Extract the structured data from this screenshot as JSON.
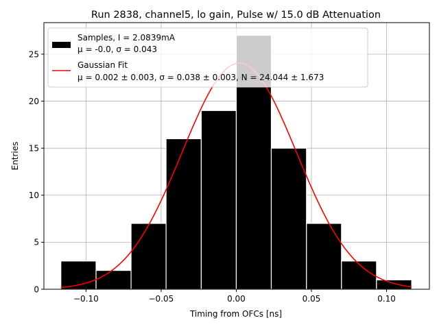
{
  "chart_data": {
    "type": "bar",
    "title": "Run 2838, channel5, lo gain, Pulse w/ 15.0 dB Attenuation",
    "xlabel": "Timing from OFCs [ns]",
    "ylabel": "Entries",
    "xlim": [
      -0.128,
      0.1285
    ],
    "ylim": [
      0,
      28.35
    ],
    "grid": true,
    "x_ticks": [
      -0.1,
      -0.05,
      0.0,
      0.05,
      0.1
    ],
    "x_tick_labels": [
      "−0.10",
      "−0.05",
      "0.00",
      "0.05",
      "0.10"
    ],
    "y_ticks": [
      0,
      5,
      10,
      15,
      20,
      25
    ],
    "y_tick_labels": [
      "0",
      "5",
      "10",
      "15",
      "20",
      "25"
    ],
    "bins": {
      "edges": [
        -0.1167,
        -0.0933,
        -0.07,
        -0.0467,
        -0.0233,
        0.0,
        0.0233,
        0.0467,
        0.07,
        0.0933,
        0.1167
      ],
      "counts": [
        3,
        2,
        7,
        16,
        19,
        27,
        15,
        7,
        3,
        1
      ]
    },
    "series": [
      {
        "name": "Samples",
        "kind": "histogram",
        "legend_line1": "Samples, I = 2.0839mA",
        "legend_line2": "μ = -0.0, σ = 0.043",
        "color": "#000000",
        "edge_color": "#ffffff"
      },
      {
        "name": "Gaussian Fit",
        "kind": "curve",
        "legend_line1": "Gaussian Fit",
        "legend_line2": "μ = 0.002 ± 0.003, σ = 0.038 ± 0.003, N = 24.044 ± 1.673",
        "mu": 0.002,
        "sigma": 0.038,
        "N": 24.044,
        "x_range": [
          -0.1167,
          0.1167
        ],
        "color": "#ff0000"
      }
    ],
    "legend_position": "top-left",
    "colors": {
      "grid": "#b0b0b0",
      "legend_border": "#cccccc"
    }
  }
}
